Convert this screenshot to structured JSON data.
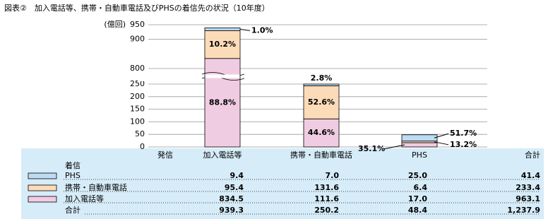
{
  "chart_data": {
    "type": "bar",
    "title": "図表②　加入電話等、携帯・自動車電話及びPHSの着信先の状況（10年度）",
    "y_label": "(億回)",
    "categories": [
      "加入電話等",
      "携帯・自動車電話",
      "PHS"
    ],
    "series": [
      {
        "name": "PHS",
        "color": "#bcdcf4",
        "values": [
          9.4,
          7.0,
          25.0
        ],
        "value_labels": [
          "9.4",
          "7.0",
          "25.0"
        ],
        "labels": [
          "1.0%",
          "2.8%",
          "51.7%"
        ]
      },
      {
        "name": "携帯・自動車電話",
        "color": "#fcdcb8",
        "values": [
          95.4,
          131.6,
          6.4
        ],
        "value_labels": [
          "95.4",
          "131.6",
          "6.4"
        ],
        "labels": [
          "10.2%",
          "52.6%",
          "13.2%"
        ]
      },
      {
        "name": "加入電話等",
        "color": "#f0cce2",
        "values": [
          834.5,
          111.6,
          17.0
        ],
        "value_labels": [
          "834.5",
          "111.6",
          "17.0"
        ],
        "labels": [
          "88.8%",
          "44.6%",
          "35.1%"
        ]
      }
    ],
    "ylim": [
      0,
      950
    ],
    "axis_break": [
      250,
      800
    ],
    "yticks": [
      0,
      50,
      100,
      150,
      200,
      250,
      800,
      900,
      950
    ],
    "grid": true
  },
  "table": {
    "corner_top": "発信",
    "corner_left": "着信",
    "total_label": "合計",
    "row_totals": [
      "41.4",
      "233.4",
      "963.1"
    ],
    "column_totals": [
      "939.3",
      "250.2",
      "48.4",
      "1,237.9"
    ]
  }
}
